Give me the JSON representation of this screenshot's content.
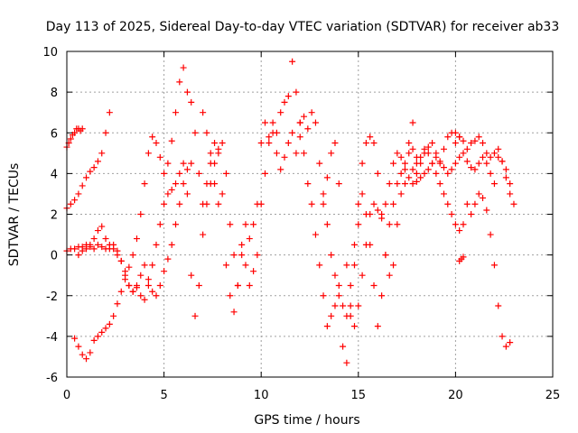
{
  "chart_data": {
    "type": "scatter",
    "title": "Day 113 of 2025, Sidereal Day-to-day VTEC variation (SDTVAR) for receiver ab33",
    "xlabel": "GPS time / hours",
    "ylabel": "SDTVAR / TECUs",
    "xlim": [
      0,
      25
    ],
    "ylim": [
      -6,
      10
    ],
    "xticks": [
      0,
      5,
      10,
      15,
      20,
      25
    ],
    "yticks": [
      -6,
      -4,
      -2,
      0,
      2,
      4,
      6,
      8,
      10
    ],
    "grid": true,
    "marker": "+",
    "color": "#ff0000",
    "series": [
      {
        "name": "trace-1",
        "x": [
          0.0,
          0.2,
          0.4,
          0.6,
          0.8,
          1.0,
          1.2,
          1.4,
          1.6,
          1.8,
          2.0,
          2.2,
          2.4,
          2.6,
          2.8,
          3.0,
          3.2,
          3.4,
          3.6,
          3.8,
          4.0,
          4.2,
          4.4,
          4.6,
          4.8,
          5.0,
          5.2,
          5.4,
          5.6,
          5.8,
          6.0,
          6.2,
          6.4
        ],
        "y": [
          0.2,
          0.3,
          0.3,
          0.4,
          0.4,
          0.5,
          0.4,
          0.3,
          0.5,
          0.4,
          0.3,
          0.5,
          0.3,
          0.0,
          -0.3,
          -0.8,
          -1.5,
          -1.8,
          -1.5,
          -1.0,
          -0.5,
          -1.2,
          -1.8,
          -2.0,
          -1.5,
          -0.8,
          -0.2,
          0.5,
          1.5,
          2.5,
          3.5,
          4.2,
          4.5
        ]
      },
      {
        "name": "trace-2",
        "x": [
          0.0,
          0.1,
          0.2,
          0.3,
          0.4,
          0.5,
          0.6,
          0.7,
          0.8
        ],
        "y": [
          5.3,
          5.5,
          5.7,
          5.9,
          6.0,
          6.2,
          6.2,
          6.1,
          6.2
        ]
      },
      {
        "name": "trace-3",
        "x": [
          0.0,
          0.2,
          0.4,
          0.6,
          0.8,
          1.0,
          1.2,
          1.4,
          1.6,
          1.8,
          2.0,
          2.2
        ],
        "y": [
          2.3,
          2.5,
          2.7,
          3.0,
          3.4,
          3.8,
          4.1,
          4.3,
          4.6,
          5.0,
          6.0,
          7.0
        ]
      },
      {
        "name": "trace-4",
        "x": [
          0.4,
          0.6,
          0.8,
          1.0,
          1.2,
          1.4,
          1.6,
          1.8,
          2.0,
          2.2,
          2.4,
          2.6,
          2.8,
          3.0,
          3.2,
          3.4,
          3.6,
          3.8,
          4.0,
          4.2,
          4.4,
          4.6,
          4.8,
          5.0,
          5.2,
          5.4,
          5.6,
          5.8,
          6.0
        ],
        "y": [
          -4.1,
          -4.5,
          -4.9,
          -5.1,
          -4.8,
          -4.2,
          -4.0,
          -3.8,
          -3.6,
          -3.4,
          -3.0,
          -2.4,
          -1.8,
          -1.2,
          -0.6,
          0.0,
          0.8,
          2.0,
          3.5,
          5.0,
          5.8,
          5.5,
          4.8,
          4.0,
          4.5,
          5.6,
          7.0,
          8.5,
          9.2
        ]
      },
      {
        "name": "trace-5",
        "x": [
          0.6,
          0.8,
          1.0,
          1.2,
          1.4,
          1.6,
          1.8,
          2.0,
          2.2,
          2.4,
          2.6,
          2.8,
          3.0,
          3.2,
          3.4,
          3.6,
          3.8,
          4.0,
          4.2,
          4.4,
          4.6,
          4.8,
          5.0,
          5.2,
          5.4,
          5.6,
          5.8,
          6.0,
          6.2,
          6.4,
          6.6,
          6.8,
          7.0,
          7.2,
          7.4,
          7.6,
          7.8
        ],
        "y": [
          0.0,
          0.2,
          0.3,
          0.5,
          0.8,
          1.2,
          1.4,
          0.8,
          0.3,
          0.5,
          0.2,
          -0.3,
          -1.0,
          -1.5,
          -1.8,
          -1.6,
          -2.0,
          -2.2,
          -1.5,
          -0.5,
          0.5,
          1.5,
          2.5,
          3.0,
          3.2,
          3.5,
          4.0,
          4.5,
          3.0,
          -1.0,
          -3.0,
          -1.5,
          1.0,
          2.5,
          3.5,
          4.5,
          5.0
        ]
      },
      {
        "name": "trace-6",
        "x": [
          6.2,
          6.4,
          6.6,
          6.8,
          7.0,
          7.2,
          7.4,
          7.6,
          7.8,
          8.0,
          8.2,
          8.4,
          8.6,
          8.8,
          9.0,
          9.2,
          9.4,
          9.6,
          9.8,
          10.0,
          10.2,
          10.4,
          10.6,
          10.8,
          11.0,
          11.2,
          11.4,
          11.6,
          11.8,
          12.0,
          12.2,
          12.4,
          12.6,
          12.8,
          13.0,
          13.2,
          13.4,
          13.6,
          13.8,
          14.0
        ],
        "y": [
          8.0,
          7.5,
          6.0,
          4.0,
          2.5,
          3.5,
          5.0,
          5.5,
          5.2,
          5.5,
          4.0,
          1.5,
          0.0,
          -1.5,
          0.5,
          1.5,
          0.8,
          1.5,
          2.5,
          5.5,
          6.5,
          5.8,
          6.5,
          6.0,
          7.0,
          7.5,
          7.8,
          9.5,
          8.0,
          6.5,
          6.8,
          6.2,
          7.0,
          6.5,
          4.5,
          3.0,
          3.8,
          5.0,
          5.5,
          3.5
        ]
      },
      {
        "name": "trace-7",
        "x": [
          7.0,
          7.2,
          7.4,
          7.6,
          7.8,
          8.0,
          8.2,
          8.4,
          8.6,
          8.8,
          9.0,
          9.2,
          9.4,
          9.6,
          9.8,
          10.0,
          10.2,
          10.4,
          10.6,
          10.8,
          11.0,
          11.2,
          11.4,
          11.6,
          11.8,
          12.0
        ],
        "y": [
          7.0,
          6.0,
          4.5,
          3.5,
          2.5,
          3.0,
          -0.5,
          -2.0,
          -2.8,
          -1.5,
          0.0,
          -0.5,
          -1.5,
          -0.8,
          0.0,
          2.5,
          4.0,
          5.5,
          6.0,
          5.0,
          4.2,
          4.8,
          5.5,
          6.0,
          5.0,
          5.8
        ]
      },
      {
        "name": "trace-8",
        "x": [
          12.0,
          12.2,
          12.4,
          12.6,
          12.8,
          13.0,
          13.2,
          13.4,
          13.6,
          13.8,
          14.0,
          14.2,
          14.4,
          14.6,
          14.8,
          15.0,
          15.2,
          15.4,
          15.6,
          15.8,
          16.0,
          16.2,
          16.4,
          16.6,
          16.8,
          17.0,
          17.2,
          17.4,
          17.6,
          17.8,
          18.0
        ],
        "y": [
          6.5,
          5.0,
          3.5,
          2.5,
          1.0,
          -0.5,
          -2.0,
          -3.5,
          -3.0,
          -2.5,
          -1.5,
          -4.5,
          -5.3,
          -3.0,
          -0.5,
          1.5,
          3.0,
          2.0,
          0.5,
          -1.5,
          -3.5,
          -2.0,
          0.0,
          1.5,
          2.5,
          3.5,
          4.0,
          3.5,
          5.0,
          6.5,
          4.0
        ]
      },
      {
        "name": "trace-9",
        "x": [
          13.2,
          13.4,
          13.6,
          13.8,
          14.0,
          14.2,
          14.4,
          14.6,
          14.8,
          15.0,
          15.2,
          15.4,
          15.6,
          15.8,
          16.0,
          16.2,
          16.4,
          16.6,
          16.8,
          17.0,
          17.2,
          17.4,
          17.6,
          17.8,
          18.0,
          18.2,
          18.4,
          18.6,
          18.8,
          19.0,
          19.2,
          19.4,
          19.6,
          19.8,
          20.0,
          20.2
        ],
        "y": [
          2.5,
          1.5,
          0.0,
          -1.0,
          -2.0,
          -2.5,
          -3.0,
          -1.5,
          0.5,
          2.5,
          4.5,
          5.5,
          5.8,
          5.5,
          4.0,
          2.0,
          0.0,
          -1.0,
          -0.5,
          1.5,
          3.0,
          4.5,
          5.5,
          5.2,
          4.8,
          4.5,
          5.0,
          5.3,
          5.5,
          5.0,
          4.5,
          5.2,
          5.8,
          6.0,
          6.0,
          5.8
        ]
      },
      {
        "name": "trace-10",
        "x": [
          14.4,
          14.6,
          14.8,
          15.0,
          15.2,
          15.4,
          15.6,
          15.8,
          16.0,
          16.2,
          16.4,
          16.6,
          16.8,
          17.0,
          17.2,
          17.4,
          17.6,
          17.8,
          18.0,
          18.2,
          18.4,
          18.6,
          18.8,
          19.0,
          19.2,
          19.4,
          19.6,
          19.8,
          20.0,
          20.2,
          20.4,
          20.6,
          20.8,
          21.0,
          21.2,
          21.4,
          21.6,
          21.8,
          22.0,
          22.2,
          22.4,
          22.6,
          22.8
        ],
        "y": [
          -0.5,
          -2.5,
          -3.5,
          -2.5,
          -1.0,
          0.5,
          2.0,
          2.5,
          2.2,
          1.8,
          2.5,
          3.5,
          4.5,
          5.0,
          4.8,
          4.2,
          3.8,
          3.5,
          3.6,
          3.8,
          4.0,
          4.2,
          4.5,
          4.8,
          4.6,
          4.3,
          4.0,
          4.2,
          4.5,
          4.8,
          5.0,
          4.6,
          4.3,
          4.2,
          4.5,
          4.8,
          4.5,
          4.0,
          3.5,
          4.8,
          4.6,
          4.2,
          3.5
        ]
      },
      {
        "name": "trace-11",
        "x": [
          17.8,
          18.0,
          18.2,
          18.4,
          18.6,
          18.8,
          19.0,
          19.2,
          19.4,
          19.6,
          19.8,
          20.0,
          20.2,
          20.4,
          20.6,
          20.8,
          21.0,
          21.2,
          21.4,
          21.6,
          21.8,
          22.0,
          22.2,
          22.4,
          22.6,
          22.8
        ],
        "y": [
          4.2,
          4.5,
          4.8,
          5.2,
          5.0,
          4.5,
          4.0,
          3.5,
          3.0,
          2.5,
          2.0,
          1.5,
          1.2,
          1.5,
          2.5,
          2.0,
          2.5,
          3.0,
          2.8,
          2.2,
          1.0,
          -0.5,
          -2.5,
          -4.0,
          -4.5,
          -4.3
        ]
      },
      {
        "name": "trace-12",
        "x": [
          20.0,
          20.2,
          20.4,
          20.6,
          20.8,
          21.0,
          21.2,
          21.4,
          21.6,
          21.8,
          22.0,
          22.2,
          22.4,
          22.6,
          22.8,
          23.0
        ],
        "y": [
          5.5,
          5.8,
          5.6,
          5.2,
          5.5,
          5.6,
          5.8,
          5.5,
          5.0,
          4.8,
          5.0,
          5.2,
          4.6,
          3.8,
          3.0,
          2.5
        ]
      },
      {
        "name": "trace-13",
        "x": [
          20.2,
          20.3,
          20.4
        ],
        "y": [
          -0.3,
          -0.2,
          -0.1
        ]
      }
    ]
  }
}
